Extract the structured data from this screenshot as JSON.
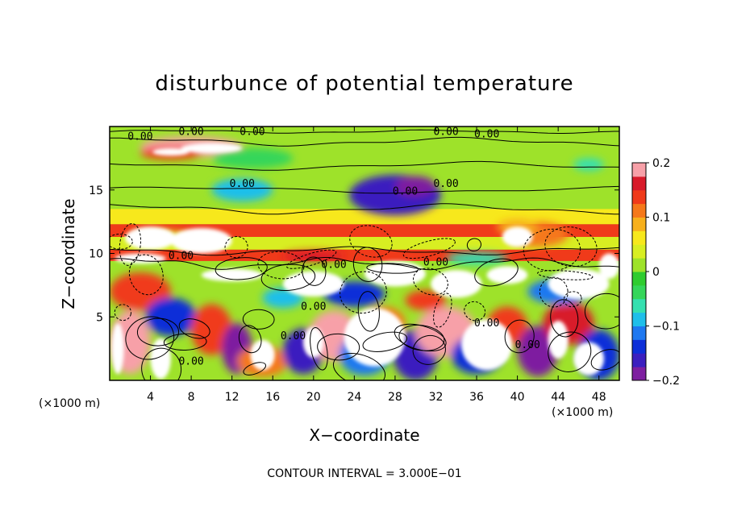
{
  "chart_data": {
    "type": "heatmap",
    "title": "disturbunce of potential temperature",
    "xlabel": "X−coordinate",
    "ylabel": "Z−coordinate",
    "x_unit_left": "(×1000 m)",
    "x_unit_right": "(×1000 m)",
    "footer": "CONTOUR INTERVAL = 3.000E−01",
    "x_ticks": [
      4,
      8,
      12,
      16,
      20,
      24,
      28,
      32,
      36,
      40,
      44,
      48
    ],
    "y_ticks": [
      5,
      10,
      15
    ],
    "xlim": [
      0,
      50
    ],
    "ylim": [
      0,
      20
    ],
    "colorbar": {
      "ticks": [
        {
          "value": 0.2,
          "label": "0.2"
        },
        {
          "value": 0.1,
          "label": "0.1"
        },
        {
          "value": 0,
          "label": "0"
        },
        {
          "value": -0.1,
          "label": "−0.1"
        },
        {
          "value": -0.2,
          "label": "−0.2"
        }
      ],
      "range": [
        -0.2,
        0.2
      ],
      "colors": [
        "#7e1fa0",
        "#3b1fbf",
        "#0d2fd8",
        "#1e78f0",
        "#1fbfea",
        "#35e0b0",
        "#35d65a",
        "#2fcc2f",
        "#9ee22a",
        "#d8ee22",
        "#f7e81c",
        "#f7b01c",
        "#f5781a",
        "#f03a1a",
        "#d81a2a",
        "#f7a0a8"
      ]
    },
    "contour_labels": [
      {
        "x": 3,
        "z": 19.2,
        "label": "0.00"
      },
      {
        "x": 8,
        "z": 19.6,
        "label": "0.00"
      },
      {
        "x": 14,
        "z": 19.6,
        "label": "0.00"
      },
      {
        "x": 33,
        "z": 19.6,
        "label": "0.00"
      },
      {
        "x": 37,
        "z": 19.4,
        "label": "0.00"
      },
      {
        "x": 13,
        "z": 15.5,
        "label": "0.00"
      },
      {
        "x": 29,
        "z": 14.9,
        "label": "0.00"
      },
      {
        "x": 33,
        "z": 15.5,
        "label": "0.00"
      },
      {
        "x": 7,
        "z": 9.8,
        "label": "0.00"
      },
      {
        "x": 22,
        "z": 9.1,
        "label": "0.00"
      },
      {
        "x": 32,
        "z": 9.3,
        "label": "0.00"
      },
      {
        "x": 20,
        "z": 5.8,
        "label": "0.00"
      },
      {
        "x": 18,
        "z": 3.5,
        "label": "0.00"
      },
      {
        "x": 8,
        "z": 1.5,
        "label": "0.00"
      },
      {
        "x": 37,
        "z": 4.5,
        "label": "0.00"
      },
      {
        "x": 41,
        "z": 2.8,
        "label": "0.00"
      }
    ],
    "description_bands": [
      {
        "z_from": 19.6,
        "z_to": 20,
        "level": 0.0
      },
      {
        "z_from": 17,
        "z_to": 19.6,
        "level": 0.02
      },
      {
        "z_from": 13.5,
        "z_to": 17,
        "level": 0.0
      },
      {
        "z_from": 12.3,
        "z_to": 13.5,
        "level": 0.06
      },
      {
        "z_from": 11.3,
        "z_to": 12.3,
        "level": 0.14
      },
      {
        "z_from": 10.3,
        "z_to": 11.3,
        "level": 0.03
      },
      {
        "z_from": 9.4,
        "z_to": 10.3,
        "level": 0.15
      },
      {
        "z_from": 0,
        "z_to": 9.4,
        "level": 0.0
      }
    ]
  }
}
